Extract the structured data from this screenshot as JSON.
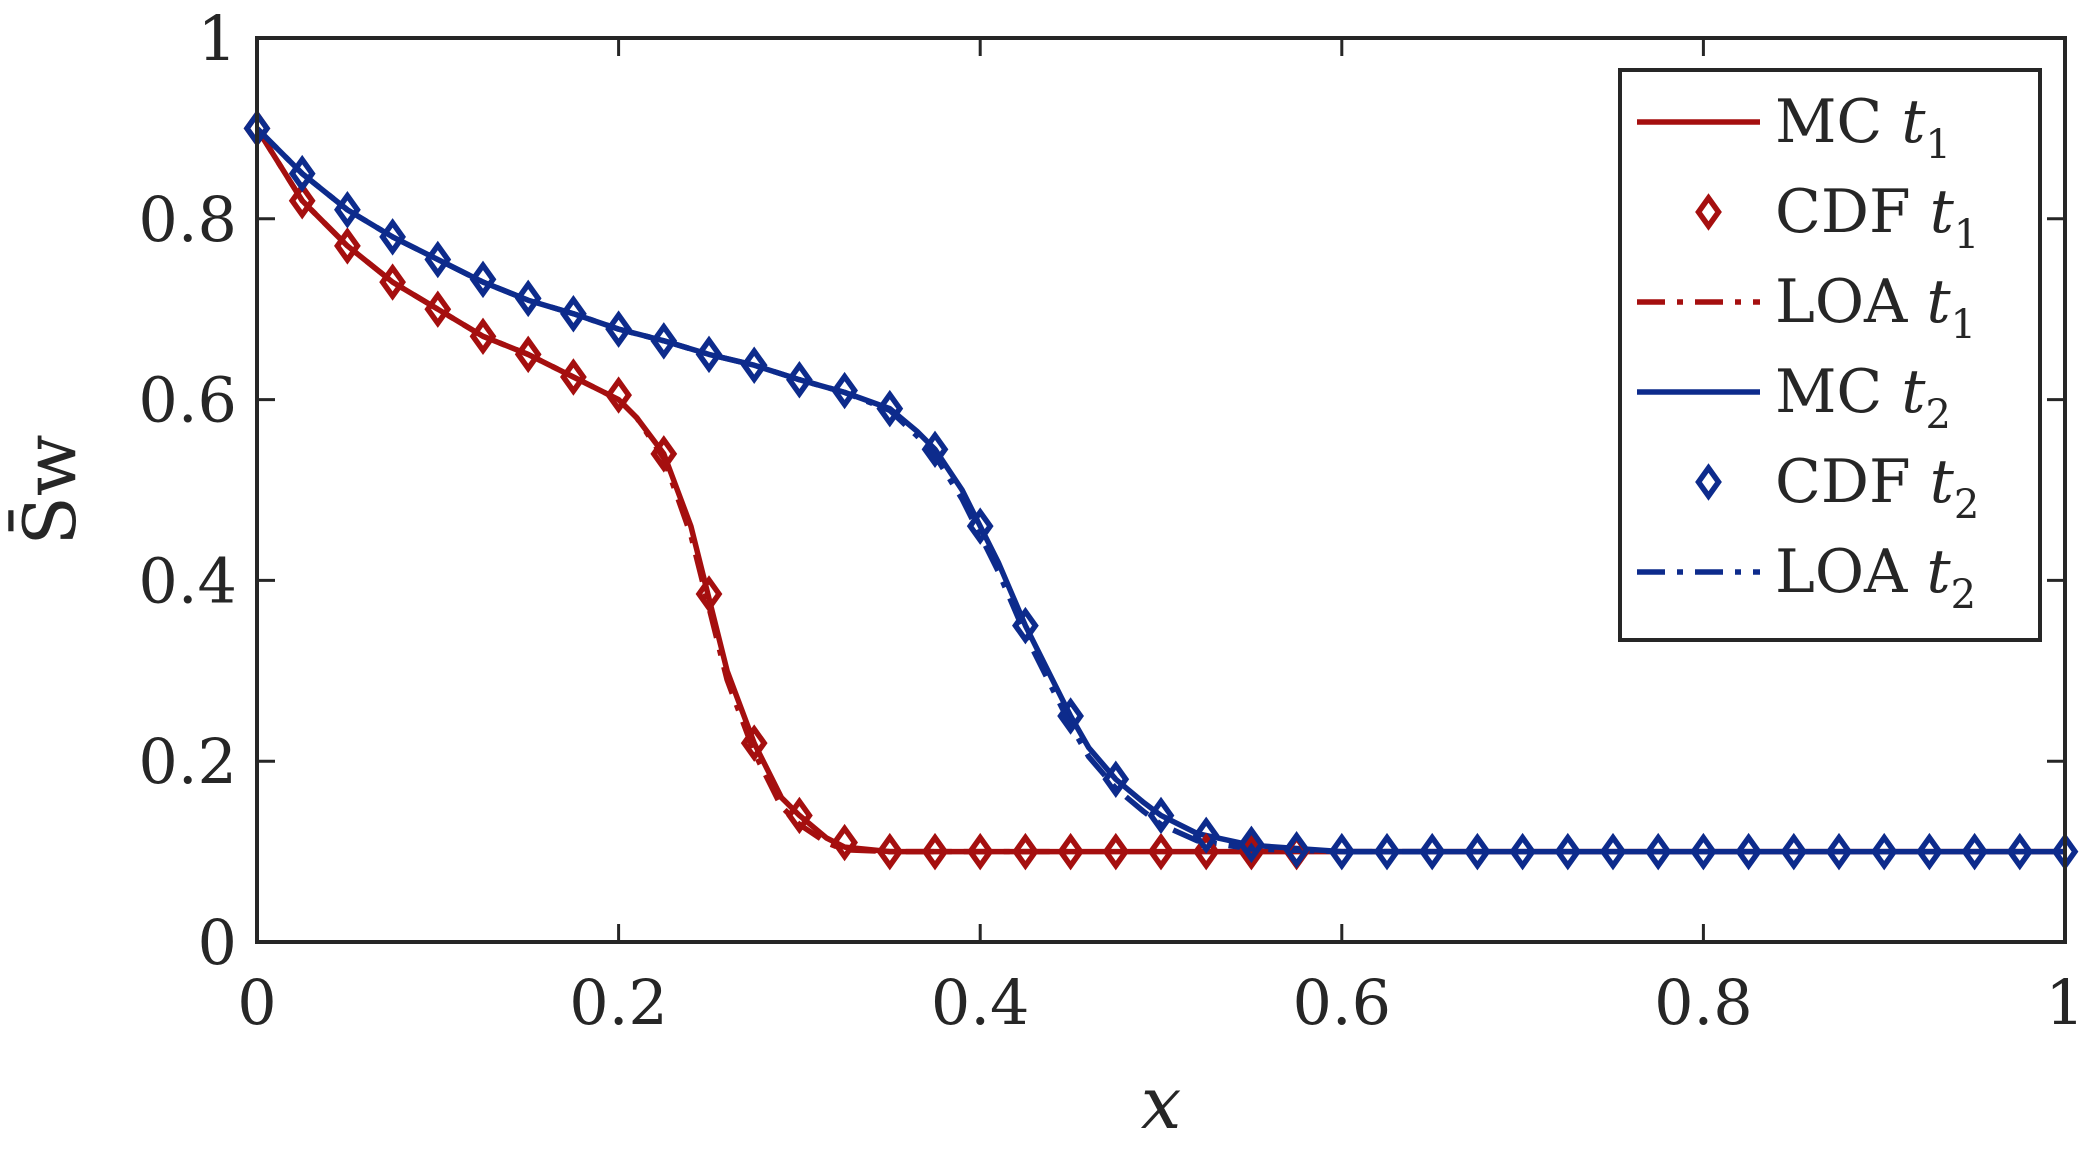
{
  "chart_data": {
    "type": "line",
    "xlabel": "x",
    "ylabel": "S̄w",
    "xlim": [
      0,
      1
    ],
    "ylim": [
      0,
      1
    ],
    "xticks": [
      "0",
      "0.2",
      "0.4",
      "0.6",
      "0.8",
      "1"
    ],
    "yticks": [
      "0",
      "0.2",
      "0.4",
      "0.6",
      "0.8",
      "1"
    ],
    "grid": false,
    "legend_position": "top-right",
    "colors": {
      "t1": "#a50f0f",
      "t2": "#0d2b8c",
      "axis": "#262626"
    },
    "legend": [
      {
        "label": "MC ",
        "sub_var": "t",
        "sub_idx": "1",
        "style": "solid",
        "group": "t1"
      },
      {
        "label": "CDF ",
        "sub_var": "t",
        "sub_idx": "1",
        "style": "marker",
        "group": "t1"
      },
      {
        "label": "LOA ",
        "sub_var": "t",
        "sub_idx": "1",
        "style": "dashdot",
        "group": "t1"
      },
      {
        "label": "MC ",
        "sub_var": "t",
        "sub_idx": "2",
        "style": "solid",
        "group": "t2"
      },
      {
        "label": "CDF ",
        "sub_var": "t",
        "sub_idx": "2",
        "style": "marker",
        "group": "t2"
      },
      {
        "label": "LOA ",
        "sub_var": "t",
        "sub_idx": "2",
        "style": "dashdot",
        "group": "t2"
      }
    ],
    "series": [
      {
        "group": "t1",
        "style": "solid",
        "x": [
          0,
          0.025,
          0.05,
          0.075,
          0.1,
          0.125,
          0.15,
          0.175,
          0.2,
          0.21,
          0.225,
          0.24,
          0.25,
          0.26,
          0.275,
          0.29,
          0.3,
          0.315,
          0.325,
          0.35,
          0.4,
          0.5,
          0.6,
          1.0
        ],
        "y": [
          0.9,
          0.82,
          0.77,
          0.73,
          0.7,
          0.67,
          0.65,
          0.625,
          0.6,
          0.58,
          0.54,
          0.46,
          0.38,
          0.3,
          0.22,
          0.16,
          0.14,
          0.115,
          0.105,
          0.1,
          0.1,
          0.1,
          0.1,
          0.1
        ]
      },
      {
        "group": "t1",
        "style": "dashdot",
        "x": [
          0,
          0.025,
          0.05,
          0.075,
          0.1,
          0.125,
          0.15,
          0.175,
          0.2,
          0.21,
          0.225,
          0.24,
          0.25,
          0.26,
          0.275,
          0.29,
          0.3,
          0.315,
          0.325,
          0.35,
          0.4,
          0.45
        ],
        "y": [
          0.9,
          0.82,
          0.77,
          0.73,
          0.7,
          0.67,
          0.65,
          0.625,
          0.6,
          0.58,
          0.535,
          0.45,
          0.37,
          0.29,
          0.21,
          0.15,
          0.13,
          0.11,
          0.102,
          0.1,
          0.1,
          0.1
        ]
      },
      {
        "group": "t1",
        "style": "marker",
        "x": [
          0,
          0.025,
          0.05,
          0.075,
          0.1,
          0.125,
          0.15,
          0.175,
          0.2,
          0.225,
          0.25,
          0.275,
          0.3,
          0.325,
          0.35,
          0.375,
          0.4,
          0.425,
          0.45,
          0.475,
          0.5,
          0.525,
          0.55,
          0.575
        ],
        "y": [
          0.9,
          0.82,
          0.77,
          0.73,
          0.7,
          0.67,
          0.65,
          0.625,
          0.605,
          0.54,
          0.385,
          0.22,
          0.14,
          0.11,
          0.1,
          0.1,
          0.1,
          0.1,
          0.1,
          0.1,
          0.1,
          0.1,
          0.1,
          0.1
        ]
      },
      {
        "group": "t2",
        "style": "solid",
        "x": [
          0,
          0.025,
          0.05,
          0.075,
          0.1,
          0.125,
          0.15,
          0.175,
          0.2,
          0.225,
          0.25,
          0.275,
          0.3,
          0.325,
          0.35,
          0.365,
          0.375,
          0.39,
          0.4,
          0.41,
          0.425,
          0.44,
          0.45,
          0.46,
          0.475,
          0.49,
          0.5,
          0.52,
          0.55,
          0.6,
          1.0
        ],
        "y": [
          0.9,
          0.85,
          0.81,
          0.78,
          0.755,
          0.73,
          0.71,
          0.695,
          0.678,
          0.665,
          0.65,
          0.638,
          0.622,
          0.608,
          0.59,
          0.565,
          0.545,
          0.5,
          0.46,
          0.42,
          0.35,
          0.29,
          0.25,
          0.215,
          0.18,
          0.155,
          0.14,
          0.12,
          0.107,
          0.1,
          0.1
        ]
      },
      {
        "group": "t2",
        "style": "dashdot",
        "x": [
          0,
          0.025,
          0.05,
          0.075,
          0.1,
          0.125,
          0.15,
          0.175,
          0.2,
          0.225,
          0.25,
          0.275,
          0.3,
          0.325,
          0.35,
          0.365,
          0.375,
          0.39,
          0.4,
          0.41,
          0.425,
          0.44,
          0.45,
          0.46,
          0.475,
          0.49,
          0.5,
          0.52,
          0.55,
          0.6,
          0.65
        ],
        "y": [
          0.9,
          0.85,
          0.81,
          0.78,
          0.755,
          0.73,
          0.71,
          0.695,
          0.678,
          0.665,
          0.65,
          0.638,
          0.622,
          0.608,
          0.588,
          0.56,
          0.538,
          0.49,
          0.45,
          0.41,
          0.34,
          0.28,
          0.24,
          0.205,
          0.17,
          0.145,
          0.13,
          0.112,
          0.103,
          0.1,
          0.1
        ]
      },
      {
        "group": "t2",
        "style": "marker",
        "x": [
          0,
          0.025,
          0.05,
          0.075,
          0.1,
          0.125,
          0.15,
          0.175,
          0.2,
          0.225,
          0.25,
          0.275,
          0.3,
          0.325,
          0.35,
          0.375,
          0.4,
          0.425,
          0.45,
          0.475,
          0.5,
          0.525,
          0.55,
          0.575,
          0.6,
          0.625,
          0.65,
          0.675,
          0.7,
          0.725,
          0.75,
          0.775,
          0.8,
          0.825,
          0.85,
          0.875,
          0.9,
          0.925,
          0.95,
          0.975,
          1.0
        ],
        "y": [
          0.9,
          0.85,
          0.81,
          0.78,
          0.755,
          0.733,
          0.712,
          0.695,
          0.678,
          0.665,
          0.65,
          0.638,
          0.622,
          0.61,
          0.59,
          0.545,
          0.46,
          0.35,
          0.25,
          0.18,
          0.14,
          0.118,
          0.108,
          0.102,
          0.1,
          0.1,
          0.1,
          0.1,
          0.1,
          0.1,
          0.1,
          0.1,
          0.1,
          0.1,
          0.1,
          0.1,
          0.1,
          0.1,
          0.1,
          0.1,
          0.1
        ]
      }
    ]
  }
}
